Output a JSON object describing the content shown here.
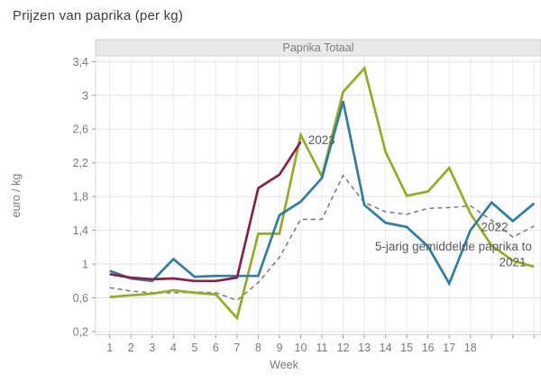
{
  "title": "Prijzen van paprika (per kg)",
  "panel_title": "Paprika Totaal",
  "x_axis": {
    "label": "Week",
    "tick_labels": [
      "1",
      "2",
      "3",
      "4",
      "5",
      "6",
      "7",
      "8",
      "9",
      "10",
      "11",
      "12",
      "13",
      "14",
      "15",
      "16",
      "17",
      "18"
    ],
    "tick_weeks": [
      1,
      2,
      3,
      4,
      5,
      6,
      7,
      8,
      9,
      10,
      11,
      12,
      13,
      14,
      15,
      16,
      17,
      18
    ],
    "gridline_weeks": [
      1,
      2,
      3,
      4,
      5,
      6,
      7,
      8,
      9,
      10,
      11,
      12,
      13,
      14,
      15,
      16,
      17,
      18,
      19,
      20,
      21
    ]
  },
  "y_axis": {
    "label": "euro / kg",
    "tick_labels": [
      "0,2",
      "0,6",
      "1",
      "1,4",
      "1,8",
      "2,2",
      "2,6",
      "3",
      "3,4"
    ],
    "tick_values": [
      0.2,
      0.6,
      1.0,
      1.4,
      1.8,
      2.2,
      2.6,
      3.0,
      3.4
    ]
  },
  "chart_data": {
    "type": "line",
    "title": "Paprika Totaal",
    "xlabel": "Week",
    "ylabel": "euro / kg",
    "xlim": [
      0.3,
      20.8
    ],
    "ylim": [
      0.2,
      3.4
    ],
    "grid": true,
    "legend": "inline-labels",
    "series": [
      {
        "name": "2023",
        "color": "#8c2044",
        "style": "solid",
        "x": [
          1,
          2,
          3,
          4,
          5,
          6,
          7,
          8,
          9,
          10
        ],
        "values": [
          0.88,
          0.84,
          0.82,
          0.83,
          0.8,
          0.8,
          0.84,
          1.9,
          2.06,
          2.45
        ],
        "annotation": {
          "text": "2023",
          "week": 10.35,
          "value": 2.47
        }
      },
      {
        "name": "2022",
        "color": "#2e7fa5",
        "style": "solid",
        "x": [
          1,
          2,
          3,
          4,
          5,
          6,
          7,
          8,
          9,
          10,
          11,
          12,
          13,
          14,
          15,
          16,
          17,
          18,
          19,
          20,
          21
        ],
        "values": [
          0.92,
          0.83,
          0.8,
          1.06,
          0.85,
          0.86,
          0.86,
          0.86,
          1.58,
          1.74,
          2.02,
          2.93,
          1.7,
          1.49,
          1.44,
          1.21,
          0.77,
          1.4,
          1.73,
          1.51,
          1.72
        ],
        "annotation": {
          "text": "2022",
          "week": 18.5,
          "value": 1.44
        }
      },
      {
        "name": "2021",
        "color": "#95ad1e",
        "style": "solid",
        "x": [
          1,
          2,
          3,
          4,
          5,
          6,
          7,
          8,
          9,
          10,
          11,
          12,
          13,
          14,
          15,
          16,
          17,
          18,
          19,
          20,
          21
        ],
        "values": [
          0.61,
          0.63,
          0.65,
          0.69,
          0.66,
          0.64,
          0.36,
          1.36,
          1.36,
          2.53,
          2.04,
          3.04,
          3.32,
          2.33,
          1.81,
          1.86,
          2.14,
          1.6,
          1.22,
          1.04,
          0.97
        ],
        "annotation": {
          "text": "2021",
          "week": 19.35,
          "value": 1.02
        }
      },
      {
        "name": "5-jarig gemiddelde",
        "color": "#7f7f7f",
        "style": "dashed",
        "x": [
          1,
          2,
          3,
          4,
          5,
          6,
          7,
          8,
          9,
          10,
          11,
          12,
          13,
          14,
          15,
          16,
          17,
          18,
          19,
          20,
          21
        ],
        "values": [
          0.72,
          0.68,
          0.66,
          0.66,
          0.67,
          0.66,
          0.57,
          0.78,
          1.08,
          1.53,
          1.53,
          2.05,
          1.73,
          1.62,
          1.59,
          1.66,
          1.67,
          1.69,
          1.52,
          1.32,
          1.45
        ],
        "annotation": {
          "text": "5-jarig gemiddelde paprika to",
          "week": 13.5,
          "value": 1.21
        }
      }
    ]
  },
  "colors": {
    "page_bg": "#ffffff",
    "strip_bg": "#e9e9e9",
    "strip_border": "#cccccc",
    "strip_text": "#7d7d7d",
    "panel_border": "#d4d4d4",
    "grid_h": "#e2e2e2",
    "grid_v": "#ebebeb",
    "tick": "#9a9a9a",
    "tick_label": "#7a7a7a",
    "axis_title": "#7a7a7a",
    "annotation": "#595959",
    "title": "#3d3d3d"
  }
}
